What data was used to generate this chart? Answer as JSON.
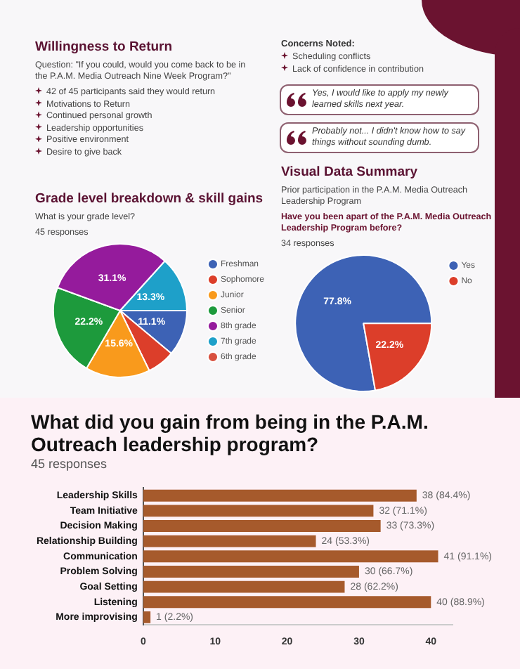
{
  "chart_data": [
    {
      "type": "other",
      "title": "Willingness to Return",
      "subtitle": "Question: \"If you could, would you come back to be in the P.A.M. Media Outreach Nine Week Program?\"",
      "annotations": [
        "42 of 45 participants said they would return",
        "Motivations to Return",
        "Continued personal growth",
        "Leadership opportunities",
        "Positive environment",
        "Desire to give back"
      ]
    },
    {
      "type": "other",
      "title": "Concerns Noted:",
      "annotations": [
        "Scheduling conflicts",
        "Lack of confidence in contribution"
      ]
    },
    {
      "type": "other",
      "annotations": [
        "Yes, I would like to apply my newly learned skills next year.",
        "Probably not... I didn't know how to say things without sounding dumb."
      ]
    },
    {
      "type": "pie",
      "title": "Grade level breakdown & skill gains",
      "subtitle": "What is your grade level?",
      "annotations": [
        "45 responses"
      ],
      "categories": [
        "Freshman",
        "Sophomore",
        "Junior",
        "Senior",
        "8th grade",
        "7th grade",
        "6th grade"
      ],
      "values": [
        11.1,
        6.7,
        15.6,
        22.2,
        31.1,
        13.3,
        0
      ],
      "colors": [
        "#3d62b5",
        "#dc3e2a",
        "#f99a1c",
        "#1d9a3c",
        "#951b9c",
        "#1ea0c9",
        "#d8503f"
      ],
      "value_labels": [
        "11.1%",
        null,
        "15.6%",
        "22.2%",
        "31.1%",
        "13.3%",
        null
      ],
      "legend": "right"
    },
    {
      "type": "pie",
      "title": "Visual Data Summary",
      "subtitle": "Prior participation in the P.A.M. Media Outreach Leadership Program",
      "annotations": [
        "Have you been apart of the P.A.M. Media Outreach Leadership Program before?",
        "34 responses"
      ],
      "categories": [
        "Yes",
        "No"
      ],
      "values": [
        77.8,
        22.2
      ],
      "colors": [
        "#3d62b5",
        "#dc3e2a"
      ],
      "value_labels": [
        "77.8%",
        "22.2%"
      ],
      "legend": "top right"
    },
    {
      "type": "bar",
      "orientation": "horizontal",
      "title": "What did you gain from being in the P.A.M. Outreach leadership program?",
      "subtitle": "45 responses",
      "categories": [
        "Leadership Skills",
        "Team Initiative",
        "Decision Making",
        "Relationship Building",
        "Communication",
        "Problem Solving",
        "Goal Setting",
        "Listening",
        "More improvising"
      ],
      "values": [
        38,
        32,
        33,
        24,
        41,
        30,
        28,
        40,
        1
      ],
      "color": "#a65a2c",
      "value_labels": [
        "38 (84.4%)",
        "32 (71.1%)",
        "33 (73.3%)",
        "24 (53.3%)",
        "41 (91.1%)",
        "30 (66.7%)",
        "28 (62.2%)",
        "40 (88.9%)",
        "1 (2.2%)"
      ],
      "xlim": [
        0,
        43
      ],
      "xticks": [
        0,
        10,
        20,
        30,
        40
      ]
    }
  ]
}
